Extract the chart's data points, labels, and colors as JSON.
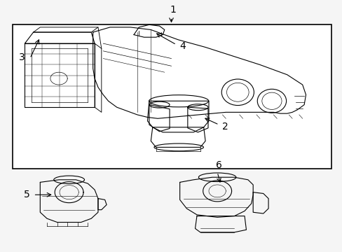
{
  "background_color": "#f5f5f5",
  "border_color": "#000000",
  "line_color": "#000000",
  "text_color": "#000000",
  "figure_width": 4.89,
  "figure_height": 3.6,
  "dpi": 100,
  "label_font_size": 10,
  "arrow_color": "#000000"
}
